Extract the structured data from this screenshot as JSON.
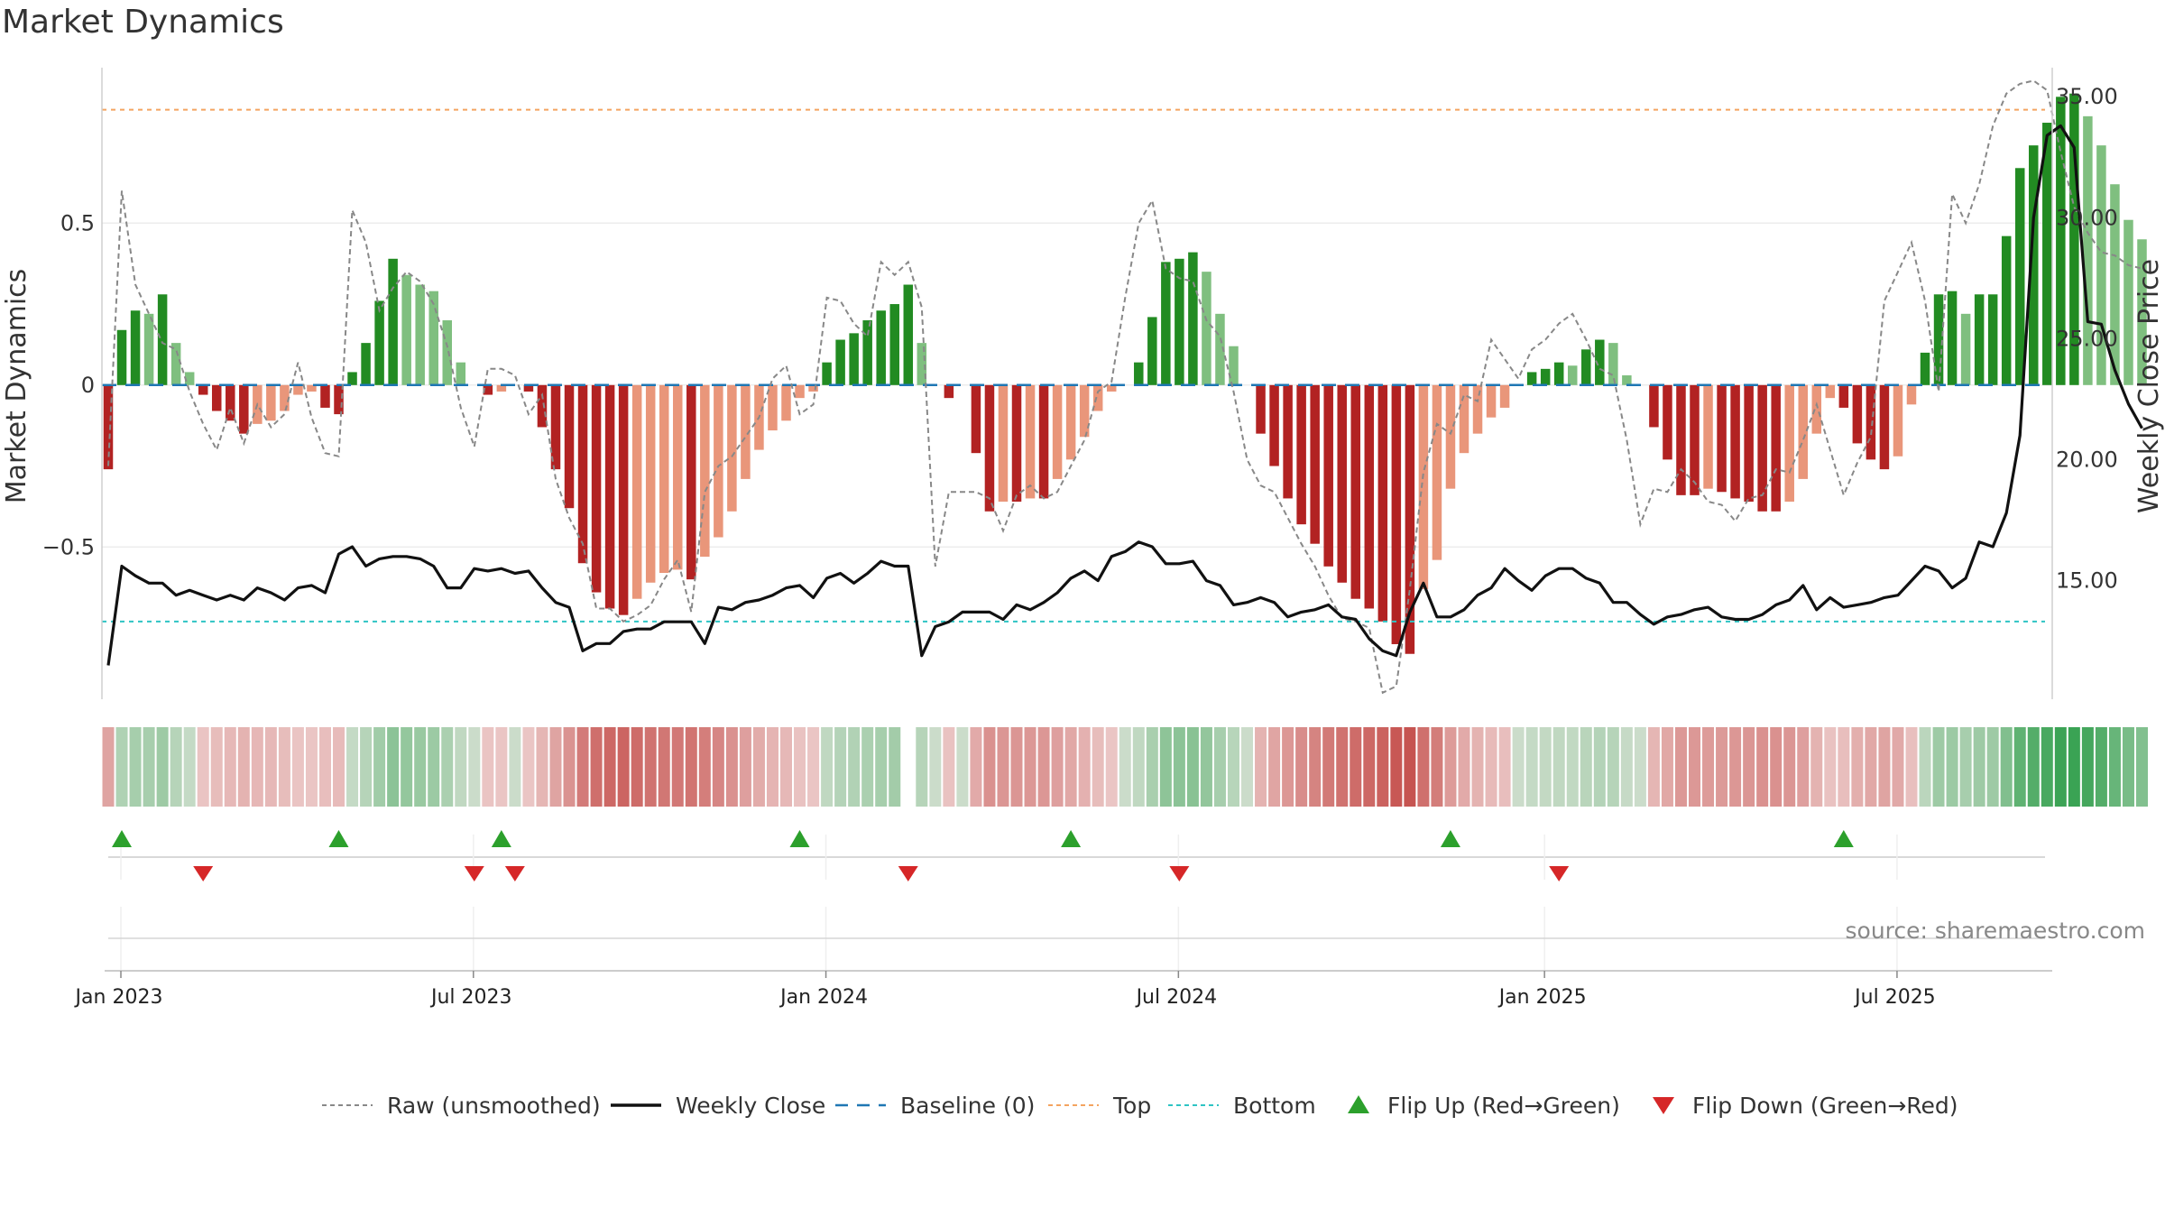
{
  "chart_data": {
    "type": "bar",
    "title": "Market Dynamics",
    "ylabel_left": "Market Dynamics",
    "ylabel_right": "Weekly Close Price",
    "source": "source: sharemaestro.com",
    "left_axis": {
      "ylim": [
        -0.97,
        0.98
      ],
      "ticks": [
        0.5,
        0,
        -0.5
      ],
      "tick_labels": [
        "0.5",
        "0",
        "−0.5"
      ]
    },
    "right_axis": {
      "ylim": [
        10.1,
        36.2
      ],
      "ticks": [
        35,
        30,
        25,
        20,
        15
      ],
      "tick_labels": [
        "35.00",
        "30.00",
        "25.00",
        "20.00",
        "15.00"
      ]
    },
    "x_ticks": [
      {
        "week": 0,
        "label": "Jan 2023"
      },
      {
        "week": 26,
        "label": "Jul 2023"
      },
      {
        "week": 52,
        "label": "Jan 2024"
      },
      {
        "week": 78,
        "label": "Jul 2024"
      },
      {
        "week": 105,
        "label": "Jan 2025"
      },
      {
        "week": 131,
        "label": "Jul 2025"
      }
    ],
    "top_level": 0.85,
    "bottom_level": -0.73,
    "baseline": 0,
    "colors": {
      "strong_up": "#228b22",
      "weak_up": "#7fbf7f",
      "strong_down": "#b22222",
      "weak_down": "#e9967a",
      "price": "#111111",
      "raw": "#888888",
      "baseline": "#1f77b4",
      "top": "#f4a460",
      "bottom": "#2ec4c4",
      "flip_up": "#2ca02c",
      "flip_down": "#d62728"
    },
    "histogram": [
      -0.26,
      0.17,
      0.23,
      0.22,
      0.28,
      0.13,
      0.04,
      -0.03,
      -0.08,
      -0.11,
      -0.15,
      -0.12,
      -0.11,
      -0.08,
      -0.03,
      -0.02,
      -0.07,
      -0.09,
      0.04,
      0.13,
      0.26,
      0.39,
      0.34,
      0.31,
      0.29,
      0.2,
      0.07,
      0,
      -0.03,
      -0.02,
      0,
      -0.02,
      -0.13,
      -0.26,
      -0.38,
      -0.55,
      -0.64,
      -0.69,
      -0.71,
      -0.66,
      -0.61,
      -0.58,
      -0.57,
      -0.6,
      -0.53,
      -0.47,
      -0.39,
      -0.29,
      -0.2,
      -0.14,
      -0.11,
      -0.04,
      -0.02,
      0.07,
      0.14,
      0.16,
      0.2,
      0.23,
      0.25,
      0.31,
      0.13,
      0,
      -0.04,
      0,
      -0.21,
      -0.39,
      -0.36,
      -0.36,
      -0.35,
      -0.35,
      -0.29,
      -0.23,
      -0.16,
      -0.08,
      -0.02,
      0,
      0.07,
      0.21,
      0.38,
      0.39,
      0.41,
      0.35,
      0.22,
      0.12,
      0,
      -0.15,
      -0.25,
      -0.35,
      -0.43,
      -0.49,
      -0.56,
      -0.61,
      -0.66,
      -0.69,
      -0.73,
      -0.8,
      -0.83,
      -0.63,
      -0.54,
      -0.32,
      -0.21,
      -0.15,
      -0.1,
      -0.07,
      0,
      0.04,
      0.05,
      0.07,
      0.06,
      0.11,
      0.14,
      0.13,
      0.03,
      0,
      -0.13,
      -0.23,
      -0.34,
      -0.34,
      -0.32,
      -0.33,
      -0.35,
      -0.36,
      -0.39,
      -0.39,
      -0.36,
      -0.29,
      -0.15,
      -0.04,
      -0.07,
      -0.18,
      -0.23,
      -0.26,
      -0.22,
      -0.06,
      0.1,
      0.28,
      0.29,
      0.22,
      0.28,
      0.28,
      0.46,
      0.67,
      0.74,
      0.81,
      0.89,
      0.9,
      0.83,
      0.74,
      0.62,
      0.51,
      0.45
    ],
    "raw": [
      -0.25,
      0.6,
      0.31,
      0.22,
      0.13,
      0.11,
      -0.02,
      -0.12,
      -0.2,
      -0.07,
      -0.18,
      -0.06,
      -0.13,
      -0.09,
      0.07,
      -0.1,
      -0.21,
      -0.22,
      0.54,
      0.44,
      0.23,
      0.3,
      0.35,
      0.32,
      0.25,
      0.12,
      -0.07,
      -0.19,
      0.05,
      0.05,
      0.03,
      -0.09,
      -0.03,
      -0.29,
      -0.41,
      -0.49,
      -0.69,
      -0.69,
      -0.73,
      -0.71,
      -0.68,
      -0.6,
      -0.54,
      -0.7,
      -0.33,
      -0.25,
      -0.22,
      -0.16,
      -0.1,
      0.02,
      0.06,
      -0.09,
      -0.06,
      0.27,
      0.26,
      0.19,
      0.15,
      0.38,
      0.34,
      0.38,
      0.24,
      -0.56,
      -0.33,
      -0.33,
      -0.33,
      -0.35,
      -0.45,
      -0.34,
      -0.31,
      -0.35,
      -0.33,
      -0.25,
      -0.17,
      -0.02,
      0.01,
      0.27,
      0.5,
      0.57,
      0.36,
      0.33,
      0.32,
      0.2,
      0.15,
      -0.02,
      -0.23,
      -0.31,
      -0.33,
      -0.41,
      -0.49,
      -0.56,
      -0.65,
      -0.72,
      -0.73,
      -0.75,
      -0.95,
      -0.93,
      -0.63,
      -0.27,
      -0.12,
      -0.15,
      -0.03,
      -0.05,
      0.14,
      0.08,
      0.02,
      0.11,
      0.14,
      0.19,
      0.22,
      0.14,
      0.05,
      0.03,
      -0.17,
      -0.43,
      -0.32,
      -0.33,
      -0.26,
      -0.3,
      -0.36,
      -0.37,
      -0.42,
      -0.35,
      -0.34,
      -0.26,
      -0.27,
      -0.17,
      -0.06,
      -0.2,
      -0.34,
      -0.24,
      -0.16,
      0.26,
      0.35,
      0.44,
      0.26,
      -0.02,
      0.59,
      0.5,
      0.62,
      0.8,
      0.9,
      0.93,
      0.94,
      0.91,
      0.72,
      0.55,
      0.47,
      0.41,
      0.4,
      0.37,
      0.36
    ],
    "price": [
      11.5,
      15.6,
      15.2,
      14.9,
      14.9,
      14.4,
      14.6,
      14.4,
      14.2,
      14.4,
      14.2,
      14.7,
      14.5,
      14.2,
      14.7,
      14.8,
      14.5,
      16.1,
      16.4,
      15.6,
      15.9,
      16.0,
      16.0,
      15.9,
      15.6,
      14.7,
      14.7,
      15.5,
      15.4,
      15.5,
      15.3,
      15.4,
      14.7,
      14.1,
      13.9,
      12.1,
      12.4,
      12.4,
      12.9,
      13.0,
      13.0,
      13.3,
      13.3,
      13.3,
      12.4,
      13.9,
      13.8,
      14.1,
      14.2,
      14.4,
      14.7,
      14.8,
      14.3,
      15.1,
      15.3,
      14.9,
      15.3,
      15.8,
      15.6,
      15.6,
      11.9,
      13.1,
      13.3,
      13.7,
      13.7,
      13.7,
      13.4,
      14.0,
      13.8,
      14.1,
      14.5,
      15.1,
      15.4,
      15.0,
      16.0,
      16.2,
      16.6,
      16.4,
      15.7,
      15.7,
      15.8,
      15.0,
      14.8,
      14.0,
      14.1,
      14.3,
      14.1,
      13.5,
      13.7,
      13.8,
      14.0,
      13.5,
      13.4,
      12.6,
      12.1,
      11.9,
      13.7,
      14.9,
      13.5,
      13.5,
      13.8,
      14.4,
      14.7,
      15.5,
      15.0,
      14.6,
      15.2,
      15.5,
      15.5,
      15.1,
      14.9,
      14.1,
      14.1,
      13.6,
      13.2,
      13.5,
      13.6,
      13.8,
      13.9,
      13.5,
      13.4,
      13.4,
      13.6,
      14.0,
      14.2,
      14.8,
      13.8,
      14.3,
      13.9,
      14.0,
      14.1,
      14.3,
      14.4,
      15.0,
      15.6,
      15.4,
      14.7,
      15.1,
      16.6,
      16.4,
      17.8,
      21.0,
      30.0,
      33.4,
      33.8,
      32.9,
      25.7,
      25.6,
      23.7,
      22.3,
      21.3
    ],
    "heatmap_gap_week": 59,
    "flip_up_weeks": [
      0,
      16,
      28,
      50,
      70,
      98,
      127
    ],
    "flip_down_weeks": [
      6,
      26,
      29,
      58,
      78,
      106
    ],
    "legend": [
      {
        "key": "raw",
        "label": "Raw (unsmoothed)"
      },
      {
        "key": "close",
        "label": "Weekly Close"
      },
      {
        "key": "baseline",
        "label": "Baseline (0)"
      },
      {
        "key": "top",
        "label": "Top"
      },
      {
        "key": "bottom",
        "label": "Bottom"
      },
      {
        "key": "flip_up",
        "label": "Flip Up (Red→Green)"
      },
      {
        "key": "flip_down",
        "label": "Flip Down (Green→Red)"
      }
    ]
  }
}
